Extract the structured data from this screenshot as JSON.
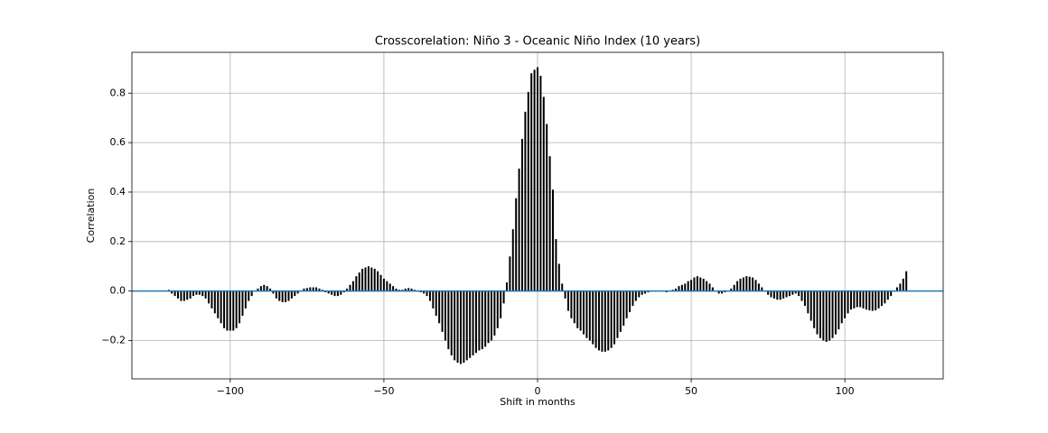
{
  "chart_data": {
    "type": "stem",
    "title": "Crosscorelation: Niño 3 - Oceanic Niño Index (10 years)",
    "x_label": "Shift in months",
    "y_label": "Correlation",
    "color": "#000000",
    "grid": true,
    "xlim": [
      -132,
      132
    ],
    "ylim": [
      -0.355,
      0.965
    ],
    "xticks": [
      {
        "value": -100,
        "label": "−100"
      },
      {
        "value": -50,
        "label": "−50"
      },
      0,
      50,
      100
    ],
    "yticks": [
      {
        "value": -0.2,
        "label": "−0.2"
      },
      {
        "value": 0,
        "label": "0.0"
      },
      0.2,
      0.4,
      0.6,
      0.8
    ],
    "x": [
      -120,
      -119,
      -118,
      -117,
      -116,
      -115,
      -114,
      -113,
      -112,
      -111,
      -110,
      -109,
      -108,
      -107,
      -106,
      -105,
      -104,
      -103,
      -102,
      -101,
      -100,
      -99,
      -98,
      -97,
      -96,
      -95,
      -94,
      -93,
      -92,
      -91,
      -90,
      -89,
      -88,
      -87,
      -86,
      -85,
      -84,
      -83,
      -82,
      -81,
      -80,
      -79,
      -78,
      -77,
      -76,
      -75,
      -74,
      -73,
      -72,
      -71,
      -70,
      -69,
      -68,
      -67,
      -66,
      -65,
      -64,
      -63,
      -62,
      -61,
      -60,
      -59,
      -58,
      -57,
      -56,
      -55,
      -54,
      -53,
      -52,
      -51,
      -50,
      -49,
      -48,
      -47,
      -46,
      -45,
      -44,
      -43,
      -42,
      -41,
      -40,
      -39,
      -38,
      -37,
      -36,
      -35,
      -34,
      -33,
      -32,
      -31,
      -30,
      -29,
      -28,
      -27,
      -26,
      -25,
      -24,
      -23,
      -22,
      -21,
      -20,
      -19,
      -18,
      -17,
      -16,
      -15,
      -14,
      -13,
      -12,
      -11,
      -10,
      -9,
      -8,
      -7,
      -6,
      -5,
      -4,
      -3,
      -2,
      -1,
      0,
      1,
      2,
      3,
      4,
      5,
      6,
      7,
      8,
      9,
      10,
      11,
      12,
      13,
      14,
      15,
      16,
      17,
      18,
      19,
      20,
      21,
      22,
      23,
      24,
      25,
      26,
      27,
      28,
      29,
      30,
      31,
      32,
      33,
      34,
      35,
      36,
      37,
      38,
      39,
      40,
      41,
      42,
      43,
      44,
      45,
      46,
      47,
      48,
      49,
      50,
      51,
      52,
      53,
      54,
      55,
      56,
      57,
      58,
      59,
      60,
      61,
      62,
      63,
      64,
      65,
      66,
      67,
      68,
      69,
      70,
      71,
      72,
      73,
      74,
      75,
      76,
      77,
      78,
      79,
      80,
      81,
      82,
      83,
      84,
      85,
      86,
      87,
      88,
      89,
      90,
      91,
      92,
      93,
      94,
      95,
      96,
      97,
      98,
      99,
      100,
      101,
      102,
      103,
      104,
      105,
      106,
      107,
      108,
      109,
      110,
      111,
      112,
      113,
      114,
      115,
      116,
      117,
      118,
      119,
      120
    ],
    "values": [
      0.005,
      -0.01,
      -0.02,
      -0.03,
      -0.04,
      -0.04,
      -0.035,
      -0.03,
      -0.02,
      -0.015,
      -0.015,
      -0.02,
      -0.03,
      -0.05,
      -0.07,
      -0.09,
      -0.11,
      -0.13,
      -0.15,
      -0.16,
      -0.16,
      -0.16,
      -0.15,
      -0.13,
      -0.1,
      -0.07,
      -0.04,
      -0.02,
      0,
      0.01,
      0.02,
      0.025,
      0.02,
      0.01,
      -0.01,
      -0.03,
      -0.04,
      -0.045,
      -0.045,
      -0.04,
      -0.03,
      -0.02,
      -0.01,
      0,
      0.01,
      0.012,
      0.015,
      0.015,
      0.015,
      0.01,
      0.005,
      -0.005,
      -0.01,
      -0.015,
      -0.02,
      -0.02,
      -0.015,
      -0.005,
      0.01,
      0.025,
      0.04,
      0.06,
      0.075,
      0.09,
      0.095,
      0.1,
      0.095,
      0.09,
      0.08,
      0.065,
      0.05,
      0.04,
      0.03,
      0.02,
      0.01,
      0.005,
      0.005,
      0.01,
      0.012,
      0.01,
      0.005,
      0,
      -0.005,
      -0.01,
      -0.02,
      -0.04,
      -0.07,
      -0.1,
      -0.13,
      -0.165,
      -0.2,
      -0.235,
      -0.26,
      -0.28,
      -0.29,
      -0.295,
      -0.29,
      -0.28,
      -0.27,
      -0.26,
      -0.25,
      -0.24,
      -0.235,
      -0.225,
      -0.21,
      -0.2,
      -0.18,
      -0.15,
      -0.11,
      -0.05,
      0.035,
      0.14,
      0.25,
      0.375,
      0.495,
      0.615,
      0.725,
      0.805,
      0.88,
      0.895,
      0.905,
      0.87,
      0.785,
      0.675,
      0.545,
      0.41,
      0.21,
      0.11,
      0.03,
      -0.03,
      -0.08,
      -0.11,
      -0.13,
      -0.15,
      -0.16,
      -0.175,
      -0.19,
      -0.2,
      -0.215,
      -0.23,
      -0.24,
      -0.245,
      -0.245,
      -0.24,
      -0.23,
      -0.215,
      -0.19,
      -0.165,
      -0.14,
      -0.11,
      -0.085,
      -0.06,
      -0.04,
      -0.025,
      -0.015,
      -0.01,
      -0.005,
      0,
      0,
      0,
      0,
      0,
      -0.005,
      0,
      0.005,
      0.01,
      0.02,
      0.025,
      0.03,
      0.04,
      0.045,
      0.055,
      0.06,
      0.055,
      0.05,
      0.04,
      0.03,
      0.015,
      0,
      -0.01,
      -0.01,
      -0.005,
      0,
      0.01,
      0.025,
      0.04,
      0.05,
      0.055,
      0.06,
      0.058,
      0.055,
      0.045,
      0.03,
      0.015,
      0,
      -0.015,
      -0.025,
      -0.03,
      -0.035,
      -0.035,
      -0.03,
      -0.025,
      -0.02,
      -0.015,
      -0.01,
      -0.02,
      -0.04,
      -0.06,
      -0.09,
      -0.12,
      -0.15,
      -0.175,
      -0.19,
      -0.2,
      -0.205,
      -0.2,
      -0.19,
      -0.175,
      -0.155,
      -0.13,
      -0.11,
      -0.09,
      -0.075,
      -0.07,
      -0.065,
      -0.065,
      -0.07,
      -0.075,
      -0.078,
      -0.08,
      -0.078,
      -0.07,
      -0.06,
      -0.05,
      -0.035,
      -0.02,
      0,
      0.015,
      0.03,
      0.05,
      0.08
    ]
  }
}
